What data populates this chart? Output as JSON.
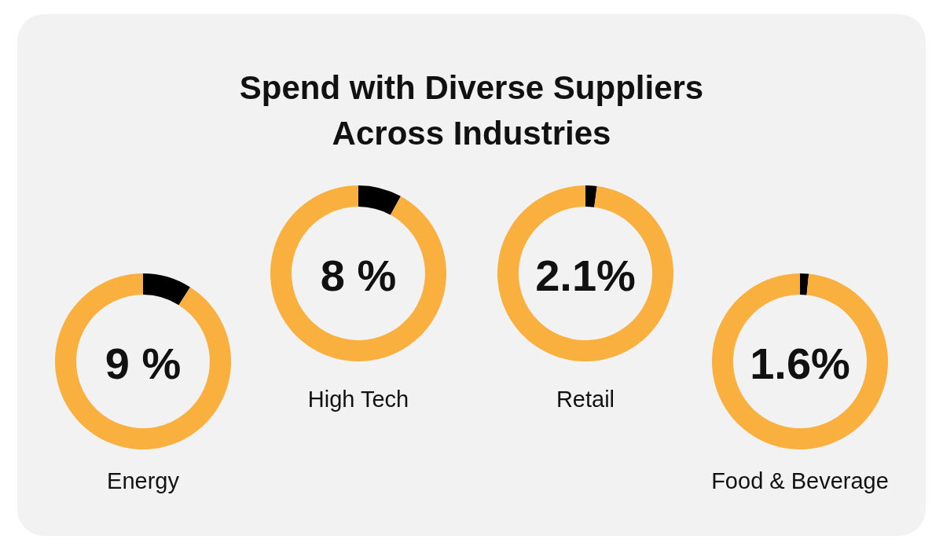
{
  "chart_data": [
    {
      "type": "donut",
      "title": "Spend with Diverse Suppliers Across Industries",
      "xlabel": "Energy",
      "categories": [
        null,
        null
      ],
      "values": [
        9,
        91
      ],
      "colors": [
        "#000000",
        "#f9b03e"
      ],
      "annotations": [
        "9 %"
      ]
    },
    {
      "type": "donut",
      "xlabel": "High Tech",
      "categories": [
        null,
        null
      ],
      "values": [
        8,
        92
      ],
      "colors": [
        "#000000",
        "#f9b03e"
      ],
      "annotations": [
        "8 %"
      ]
    },
    {
      "type": "donut",
      "xlabel": "Retail",
      "categories": [
        null,
        null
      ],
      "values": [
        2.1,
        97.9
      ],
      "colors": [
        "#000000",
        "#f9b03e"
      ],
      "annotations": [
        "2.1%"
      ]
    },
    {
      "type": "donut",
      "xlabel": "Food & Beverage",
      "categories": [
        null,
        null
      ],
      "values": [
        1.6,
        98.4
      ],
      "colors": [
        "#000000",
        "#f9b03e"
      ],
      "annotations": [
        "1.6%"
      ]
    }
  ]
}
